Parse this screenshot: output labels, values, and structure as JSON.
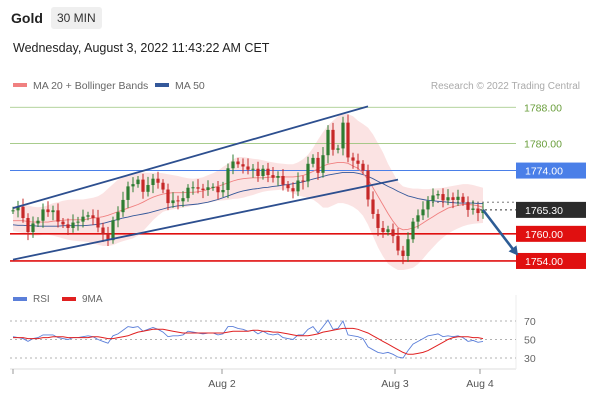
{
  "header": {
    "symbol": "Gold",
    "timeframe": "30 MIN",
    "datetime": "Wednesday, August 3, 2022 11:43:22 AM CET"
  },
  "legend": {
    "ma20_label": "MA 20 + Bollinger Bands",
    "ma50_label": "MA 50",
    "copyright": "Research © 2022 Trading Central",
    "rsi_label": "RSI",
    "rsi_ma_label": "9MA"
  },
  "colors": {
    "ma20": "#f08080",
    "ma50": "#34589a",
    "bollinger": "#fadada",
    "candle_up": "#2e7d32",
    "candle_down": "#c62828",
    "resistance_line": "#9bc47c",
    "pivot_line": "#4a7fe8",
    "support_line": "#e01010",
    "channel": "#2d4f8f",
    "arrow": "#2d5c95",
    "rsi": "#5b7fd9",
    "rsi_ma": "#e02020"
  },
  "chart_data": [
    {
      "type": "candlestick",
      "x_tick_labels": [
        "Aug 2",
        "Aug 3",
        "Aug 4"
      ],
      "ylim": [
        1750,
        1790
      ],
      "price_levels": [
        {
          "value": 1788.0,
          "label": "1788.00",
          "kind": "resistance"
        },
        {
          "value": 1780.0,
          "label": "1780.00",
          "kind": "resistance"
        },
        {
          "value": 1774.0,
          "label": "1774.00",
          "kind": "pivot"
        },
        {
          "value": 1765.3,
          "label": "1765.30",
          "kind": "last-price"
        },
        {
          "value": 1760.0,
          "label": "1760.00",
          "kind": "support"
        },
        {
          "value": 1754.0,
          "label": "1754.00",
          "kind": "support"
        }
      ],
      "series": [
        {
          "name": "Gold",
          "values": [
            1765.2,
            1766.0,
            1763.5,
            1760.4,
            1762.3,
            1762.9,
            1765.4,
            1764.8,
            1765.2,
            1762.7,
            1762.1,
            1761.3,
            1762.5,
            1762.7,
            1763.8,
            1764.1,
            1763.5,
            1761.4,
            1760.0,
            1758.6,
            1763.0,
            1764.8,
            1767.5,
            1770.5,
            1771.0,
            1772.0,
            1769.3,
            1770.8,
            1772.2,
            1771.3,
            1769.8,
            1766.8,
            1767.4,
            1767.2,
            1767.9,
            1770.2,
            1770.3,
            1770.0,
            1769.7,
            1770.3,
            1770.4,
            1769.2,
            1769.7,
            1774.5,
            1776.0,
            1775.4,
            1774.9,
            1774.2,
            1774.4,
            1772.8,
            1774.4,
            1773.0,
            1772.4,
            1772.8,
            1770.9,
            1770.1,
            1769.4,
            1771.8,
            1771.6,
            1775.5,
            1776.8,
            1773.5,
            1777.4,
            1783.0,
            1778.6,
            1778.9,
            1784.6,
            1776.9,
            1776.2,
            1775.5,
            1774.0,
            1767.6,
            1764.4,
            1761.3,
            1760.4,
            1761.0,
            1759.5,
            1756.3,
            1755.1,
            1758.8,
            1762.7,
            1764.1,
            1765.4,
            1767.3,
            1768.5,
            1768.8,
            1767.4,
            1768.1,
            1767.5,
            1768.2,
            1767.0,
            1765.3,
            1765.6,
            1764.6,
            1765.3
          ]
        }
      ],
      "bollinger_upper": [
        1766.0,
        1766.3,
        1766.5,
        1766.3,
        1766.0,
        1765.9,
        1766.0,
        1766.3,
        1766.8,
        1767.0,
        1767.3,
        1767.5,
        1767.6,
        1767.6,
        1767.6,
        1767.8,
        1768.0,
        1768.3,
        1769.0,
        1770.0,
        1771.0,
        1772.0,
        1772.5,
        1773.0,
        1773.3,
        1773.5,
        1773.5,
        1773.5,
        1773.5,
        1773.5,
        1773.4,
        1773.2,
        1773.0,
        1772.8,
        1772.5,
        1772.3,
        1772.2,
        1772.3,
        1772.5,
        1773.0,
        1773.4,
        1774.0,
        1774.8,
        1775.5,
        1776.5,
        1777.0,
        1777.0,
        1776.8,
        1776.6,
        1776.5,
        1776.3,
        1776.0,
        1775.8,
        1775.6,
        1775.5,
        1775.4,
        1775.4,
        1775.8,
        1776.5,
        1777.5,
        1779.0,
        1780.8,
        1782.5,
        1784.0,
        1785.0,
        1786.0,
        1786.6,
        1786.5,
        1786.0,
        1785.0,
        1784.3,
        1783.5,
        1782.0,
        1780.0,
        1778.0,
        1775.5,
        1773.5,
        1771.5,
        1770.5,
        1770.2,
        1770.0,
        1770.0,
        1769.9,
        1769.9,
        1770.0,
        1770.1,
        1770.2,
        1770.4,
        1770.6,
        1770.8,
        1771.0,
        1771.0,
        1770.8,
        1770.5,
        1770.2
      ],
      "bollinger_lower": [
        1760.6,
        1760.4,
        1760.2,
        1759.8,
        1759.6,
        1759.6,
        1759.8,
        1759.8,
        1759.6,
        1759.3,
        1759.0,
        1758.7,
        1758.5,
        1758.4,
        1758.3,
        1758.2,
        1757.9,
        1757.6,
        1757.3,
        1757.3,
        1757.5,
        1758.0,
        1758.4,
        1758.7,
        1759.0,
        1759.6,
        1760.6,
        1761.8,
        1763.0,
        1764.0,
        1764.9,
        1765.2,
        1765.4,
        1765.6,
        1765.8,
        1766.0,
        1766.3,
        1766.5,
        1766.7,
        1766.9,
        1767.1,
        1767.3,
        1767.4,
        1767.5,
        1767.7,
        1767.8,
        1768.0,
        1768.3,
        1768.6,
        1769.0,
        1769.3,
        1769.5,
        1769.6,
        1769.7,
        1769.8,
        1769.5,
        1769.0,
        1768.5,
        1768.2,
        1768.0,
        1767.6,
        1766.8,
        1765.8,
        1765.8,
        1766.3,
        1766.8,
        1766.8,
        1766.5,
        1766.0,
        1765.2,
        1764.0,
        1762.0,
        1759.5,
        1757.0,
        1755.0,
        1753.4,
        1752.6,
        1752.0,
        1752.0,
        1752.2,
        1752.5,
        1753.3,
        1754.5,
        1755.8,
        1757.0,
        1758.2,
        1759.2,
        1760.0,
        1760.7,
        1761.2,
        1761.7,
        1762.0,
        1762.2,
        1762.3,
        1762.4
      ],
      "ma20": [
        1762.9,
        1762.9,
        1762.9,
        1762.7,
        1762.6,
        1762.6,
        1762.6,
        1762.6,
        1762.8,
        1762.9,
        1763.0,
        1763.1,
        1763.1,
        1763.1,
        1763.1,
        1763.3,
        1763.5,
        1763.6,
        1763.8,
        1764.1,
        1764.5,
        1764.9,
        1765.3,
        1765.7,
        1766.1,
        1766.5,
        1767.0,
        1767.6,
        1768.1,
        1768.5,
        1768.8,
        1769.0,
        1769.1,
        1769.1,
        1769.1,
        1769.2,
        1769.2,
        1769.3,
        1769.5,
        1769.8,
        1770.2,
        1770.5,
        1770.9,
        1771.3,
        1771.7,
        1772.0,
        1772.2,
        1772.3,
        1772.4,
        1772.4,
        1772.4,
        1772.5,
        1772.6,
        1772.6,
        1772.6,
        1772.6,
        1772.6,
        1772.7,
        1772.9,
        1773.3,
        1773.8,
        1774.4,
        1775.0,
        1775.4,
        1775.6,
        1775.8,
        1775.8,
        1775.6,
        1775.0,
        1774.5,
        1773.4,
        1772.0,
        1770.2,
        1768.3,
        1766.4,
        1764.5,
        1762.8,
        1761.4,
        1760.9,
        1761.0,
        1761.3,
        1761.7,
        1762.4,
        1763.1,
        1763.8,
        1764.5,
        1765.1,
        1765.7,
        1766.0,
        1766.3,
        1766.5,
        1766.5,
        1766.4,
        1766.2,
        1765.9
      ],
      "ma50": [
        1762.0,
        1761.9,
        1761.9,
        1761.8,
        1761.8,
        1761.7,
        1761.7,
        1761.7,
        1761.7,
        1761.7,
        1761.8,
        1761.8,
        1761.8,
        1761.8,
        1761.8,
        1761.9,
        1762.0,
        1762.1,
        1762.3,
        1762.6,
        1762.9,
        1763.2,
        1763.5,
        1763.7,
        1764.0,
        1764.2,
        1764.4,
        1764.6,
        1764.9,
        1765.2,
        1765.5,
        1765.8,
        1766.0,
        1766.2,
        1766.3,
        1766.4,
        1766.5,
        1766.6,
        1766.8,
        1767.0,
        1767.3,
        1767.6,
        1768.0,
        1768.4,
        1768.8,
        1769.2,
        1769.5,
        1769.7,
        1769.9,
        1770.0,
        1770.2,
        1770.3,
        1770.5,
        1770.6,
        1770.8,
        1770.9,
        1771.1,
        1771.3,
        1771.5,
        1771.8,
        1772.1,
        1772.4,
        1772.7,
        1773.0,
        1773.2,
        1773.4,
        1773.6,
        1773.6,
        1773.6,
        1773.4,
        1773.1,
        1772.7,
        1772.2,
        1771.6,
        1771.1,
        1770.5,
        1770.0,
        1769.4,
        1768.9,
        1768.4,
        1768.1,
        1767.8,
        1767.6,
        1767.4,
        1767.3,
        1767.2,
        1767.1,
        1767.0,
        1766.9,
        1766.8,
        1766.8,
        1766.8,
        1766.8,
        1766.7,
        1766.7
      ],
      "channel": {
        "upper": [
          [
            0,
            1765.7
          ],
          [
            71,
            1788.2
          ]
        ],
        "lower": [
          [
            0,
            1754.3
          ],
          [
            77,
            1772.0
          ]
        ]
      },
      "forecast_arrow": {
        "from": [
          94,
          1765.3
        ],
        "to": [
          101,
          1755.2
        ]
      }
    },
    {
      "type": "line",
      "ylim": [
        25,
        75
      ],
      "y_tick_labels": [
        "70",
        "50",
        "30"
      ],
      "y_ticks": [
        70,
        50,
        30
      ],
      "series": [
        {
          "name": "RSI",
          "values": [
            53,
            52,
            51,
            48,
            51,
            52,
            55,
            55,
            55,
            52,
            51,
            50,
            52,
            52,
            53,
            54,
            53,
            50,
            48,
            46,
            54,
            56,
            60,
            64,
            63,
            64,
            59,
            61,
            63,
            61,
            58,
            53,
            54,
            54,
            55,
            59,
            58,
            57,
            56,
            57,
            57,
            55,
            56,
            64,
            64,
            62,
            61,
            59,
            60,
            56,
            59,
            56,
            55,
            56,
            52,
            51,
            50,
            55,
            55,
            61,
            64,
            57,
            64,
            71,
            61,
            62,
            70,
            55,
            54,
            53,
            51,
            42,
            39,
            36,
            35,
            36,
            34,
            31,
            30,
            38,
            45,
            48,
            51,
            54,
            55,
            56,
            53,
            54,
            53,
            54,
            52,
            48,
            49,
            47,
            48
          ]
        },
        {
          "name": "9MA",
          "values": [
            52,
            52,
            52,
            51,
            51,
            51,
            52,
            52,
            53,
            53,
            53,
            52,
            52,
            52,
            52,
            52,
            53,
            53,
            52,
            51,
            51,
            52,
            53,
            54,
            56,
            58,
            59,
            60,
            61,
            61,
            61,
            60,
            59,
            58,
            57,
            57,
            57,
            57,
            57,
            57,
            57,
            57,
            57,
            58,
            59,
            59,
            59,
            59,
            60,
            60,
            59,
            59,
            58,
            58,
            57,
            56,
            55,
            54,
            54,
            54,
            55,
            56,
            58,
            59,
            60,
            61,
            62,
            62,
            62,
            61,
            59,
            57,
            54,
            51,
            48,
            45,
            42,
            39,
            36,
            34,
            34,
            35,
            36,
            38,
            41,
            44,
            47,
            50,
            52,
            53,
            53,
            53,
            52,
            52,
            51
          ]
        }
      ]
    }
  ]
}
